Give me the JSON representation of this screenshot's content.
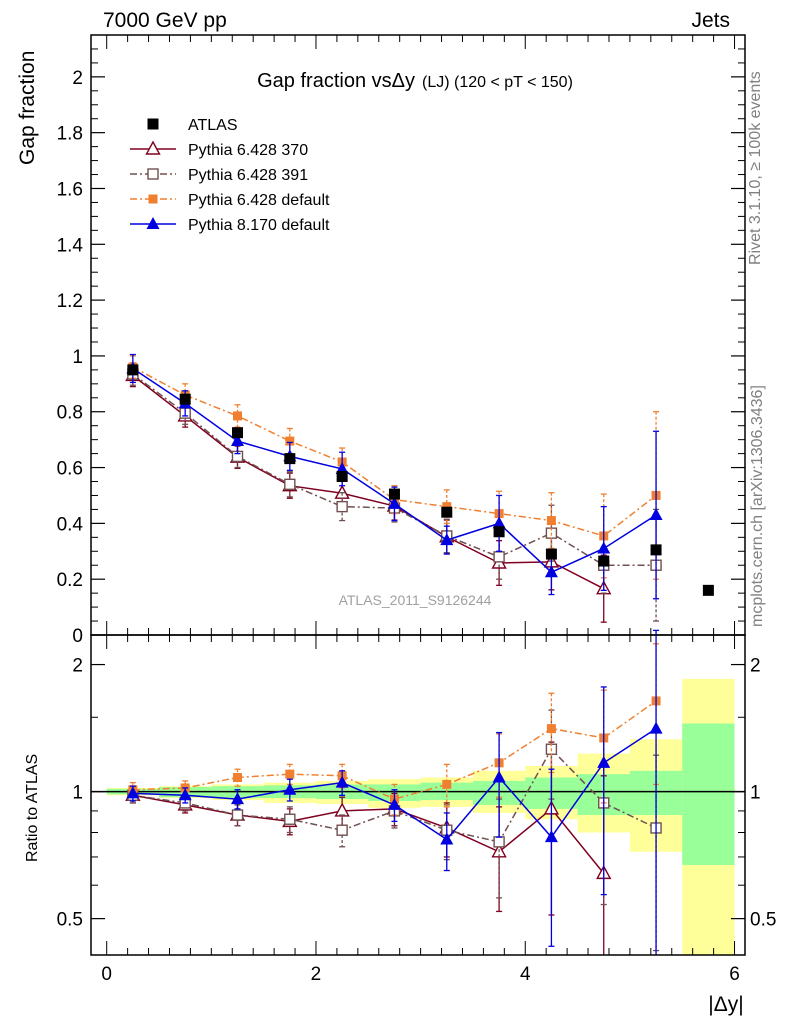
{
  "header": {
    "energy": "7000 GeV pp",
    "process": "Jets"
  },
  "side_labels": {
    "rivet": "Rivet 3.1.10, ≥ 100k events",
    "mcplots": "mcplots.cern.ch [arXiv:1306.3436]"
  },
  "chart_data": [
    {
      "type": "scatter",
      "panel": "main",
      "title": "Gap fraction vsΔy",
      "title_suffix": "(LJ) (120 < pT < 150)",
      "xlabel": "|Δy|",
      "ylabel": "Gap fraction",
      "watermark": "ATLAS_2011_S9126244",
      "xlim": [
        -0.15,
        6.1
      ],
      "ylim": [
        0,
        2.15
      ],
      "x_ticks": [
        "0",
        "2",
        "4",
        "6"
      ],
      "y_ticks": [
        "0",
        "0.2",
        "0.4",
        "0.6",
        "0.8",
        "1",
        "1.2",
        "1.4",
        "1.6",
        "1.8",
        "2"
      ],
      "x": [
        0.25,
        0.75,
        1.25,
        1.75,
        2.25,
        2.75,
        3.25,
        3.75,
        4.25,
        4.75,
        5.25,
        5.75
      ],
      "series": [
        {
          "name": "ATLAS",
          "color": "#000000",
          "marker": "square",
          "line": "none",
          "values": [
            0.95,
            0.845,
            0.725,
            0.632,
            0.568,
            0.505,
            0.44,
            0.37,
            0.29,
            0.265,
            0.305,
            0.16
          ]
        },
        {
          "name": "Pythia 6.428 370",
          "color": "#800020",
          "marker": "open-triangle",
          "line": "solid",
          "values": [
            0.93,
            0.785,
            0.637,
            0.535,
            0.508,
            0.462,
            0.352,
            0.258,
            0.262,
            0.166
          ],
          "errors": [
            0.04,
            0.04,
            0.04,
            0.045,
            0.05,
            0.05,
            0.06,
            0.08,
            0.1,
            0.12
          ]
        },
        {
          "name": "Pythia 6.428 391",
          "color": "#705050",
          "marker": "open-square",
          "line": "dashdot",
          "values": [
            0.935,
            0.795,
            0.64,
            0.54,
            0.46,
            0.455,
            0.355,
            0.28,
            0.365,
            0.25,
            0.25
          ],
          "errors": [
            0.04,
            0.04,
            0.04,
            0.045,
            0.05,
            0.05,
            0.06,
            0.08,
            0.1,
            0.1,
            0.2
          ]
        },
        {
          "name": "Pythia 6.428 default",
          "color": "#f08030",
          "marker": "filled-square",
          "line": "dashdot",
          "values": [
            0.96,
            0.86,
            0.785,
            0.695,
            0.62,
            0.485,
            0.46,
            0.435,
            0.41,
            0.355,
            0.5
          ],
          "errors": [
            0.04,
            0.04,
            0.04,
            0.045,
            0.05,
            0.05,
            0.06,
            0.08,
            0.1,
            0.15,
            0.3
          ]
        },
        {
          "name": "Pythia 8.170 default",
          "color": "#0000e0",
          "marker": "filled-triangle",
          "line": "solid",
          "values": [
            0.955,
            0.83,
            0.695,
            0.64,
            0.595,
            0.47,
            0.34,
            0.4,
            0.225,
            0.31,
            0.43
          ],
          "errors": [
            0.05,
            0.045,
            0.045,
            0.05,
            0.06,
            0.06,
            0.05,
            0.1,
            0.08,
            0.15,
            0.3
          ]
        }
      ]
    },
    {
      "type": "scatter",
      "panel": "ratio",
      "ylabel": "Ratio to ATLAS",
      "xlabel": "|Δy|",
      "yscale": "log",
      "xlim": [
        -0.15,
        6.1
      ],
      "ylim": [
        0.41,
        2.35
      ],
      "y_ticks": [
        "0.5",
        "1",
        "2"
      ],
      "x": [
        0.25,
        0.75,
        1.25,
        1.75,
        2.25,
        2.75,
        3.25,
        3.75,
        4.25,
        4.75,
        5.25
      ],
      "bands": {
        "x_edges": [
          0,
          0.5,
          1,
          1.5,
          2,
          2.5,
          3,
          3.5,
          4,
          4.5,
          5,
          5.5,
          6
        ],
        "inner_color": "#99ff99",
        "outer_color": "#ffff99",
        "inner": [
          [
            0.985,
            1.015
          ],
          [
            0.97,
            1.025
          ],
          [
            0.965,
            1.03
          ],
          [
            0.965,
            1.035
          ],
          [
            0.96,
            1.04
          ],
          [
            0.95,
            1.04
          ],
          [
            0.955,
            1.05
          ],
          [
            0.93,
            1.06
          ],
          [
            0.91,
            1.08
          ],
          [
            0.88,
            1.1
          ],
          [
            0.88,
            1.12
          ],
          [
            0.67,
            1.45
          ]
        ],
        "outer": [
          [
            0.98,
            1.02
          ],
          [
            0.965,
            1.03
          ],
          [
            0.955,
            1.04
          ],
          [
            0.94,
            1.05
          ],
          [
            0.935,
            1.06
          ],
          [
            0.915,
            1.07
          ],
          [
            0.92,
            1.08
          ],
          [
            0.89,
            1.12
          ],
          [
            0.86,
            1.15
          ],
          [
            0.8,
            1.23
          ],
          [
            0.72,
            1.33
          ],
          [
            0.4,
            1.85
          ]
        ]
      },
      "series": [
        {
          "name": "Pythia 6.428 370",
          "color": "#800020",
          "marker": "open-triangle",
          "line": "solid",
          "values": [
            0.98,
            0.93,
            0.88,
            0.85,
            0.9,
            0.91,
            0.82,
            0.72,
            0.91,
            0.64
          ],
          "errors": [
            0.04,
            0.04,
            0.05,
            0.06,
            0.07,
            0.08,
            0.12,
            0.2,
            0.4,
            0.45
          ]
        },
        {
          "name": "Pythia 6.428 391",
          "color": "#705050",
          "marker": "open-square",
          "line": "dashdot",
          "values": [
            0.98,
            0.94,
            0.88,
            0.86,
            0.81,
            0.9,
            0.81,
            0.76,
            1.26,
            0.94,
            0.82
          ],
          "errors": [
            0.04,
            0.04,
            0.05,
            0.06,
            0.07,
            0.08,
            0.12,
            0.2,
            0.3,
            0.4,
            0.4
          ]
        },
        {
          "name": "Pythia 6.428 default",
          "color": "#f08030",
          "marker": "filled-square",
          "line": "dashdot",
          "values": [
            1.01,
            1.02,
            1.08,
            1.1,
            1.09,
            0.96,
            1.04,
            1.17,
            1.41,
            1.34,
            1.64
          ],
          "errors": [
            0.04,
            0.04,
            0.05,
            0.06,
            0.07,
            0.08,
            0.12,
            0.2,
            0.3,
            0.4,
            0.6
          ]
        },
        {
          "name": "Pythia 8.170 default",
          "color": "#0000e0",
          "marker": "filled-triangle",
          "line": "solid",
          "values": [
            0.99,
            0.98,
            0.96,
            1.01,
            1.05,
            0.93,
            0.77,
            1.08,
            0.78,
            1.17,
            1.41
          ],
          "errors": [
            0.04,
            0.04,
            0.05,
            0.06,
            0.07,
            0.08,
            0.12,
            0.3,
            0.35,
            0.6,
            1.0
          ]
        }
      ]
    }
  ]
}
